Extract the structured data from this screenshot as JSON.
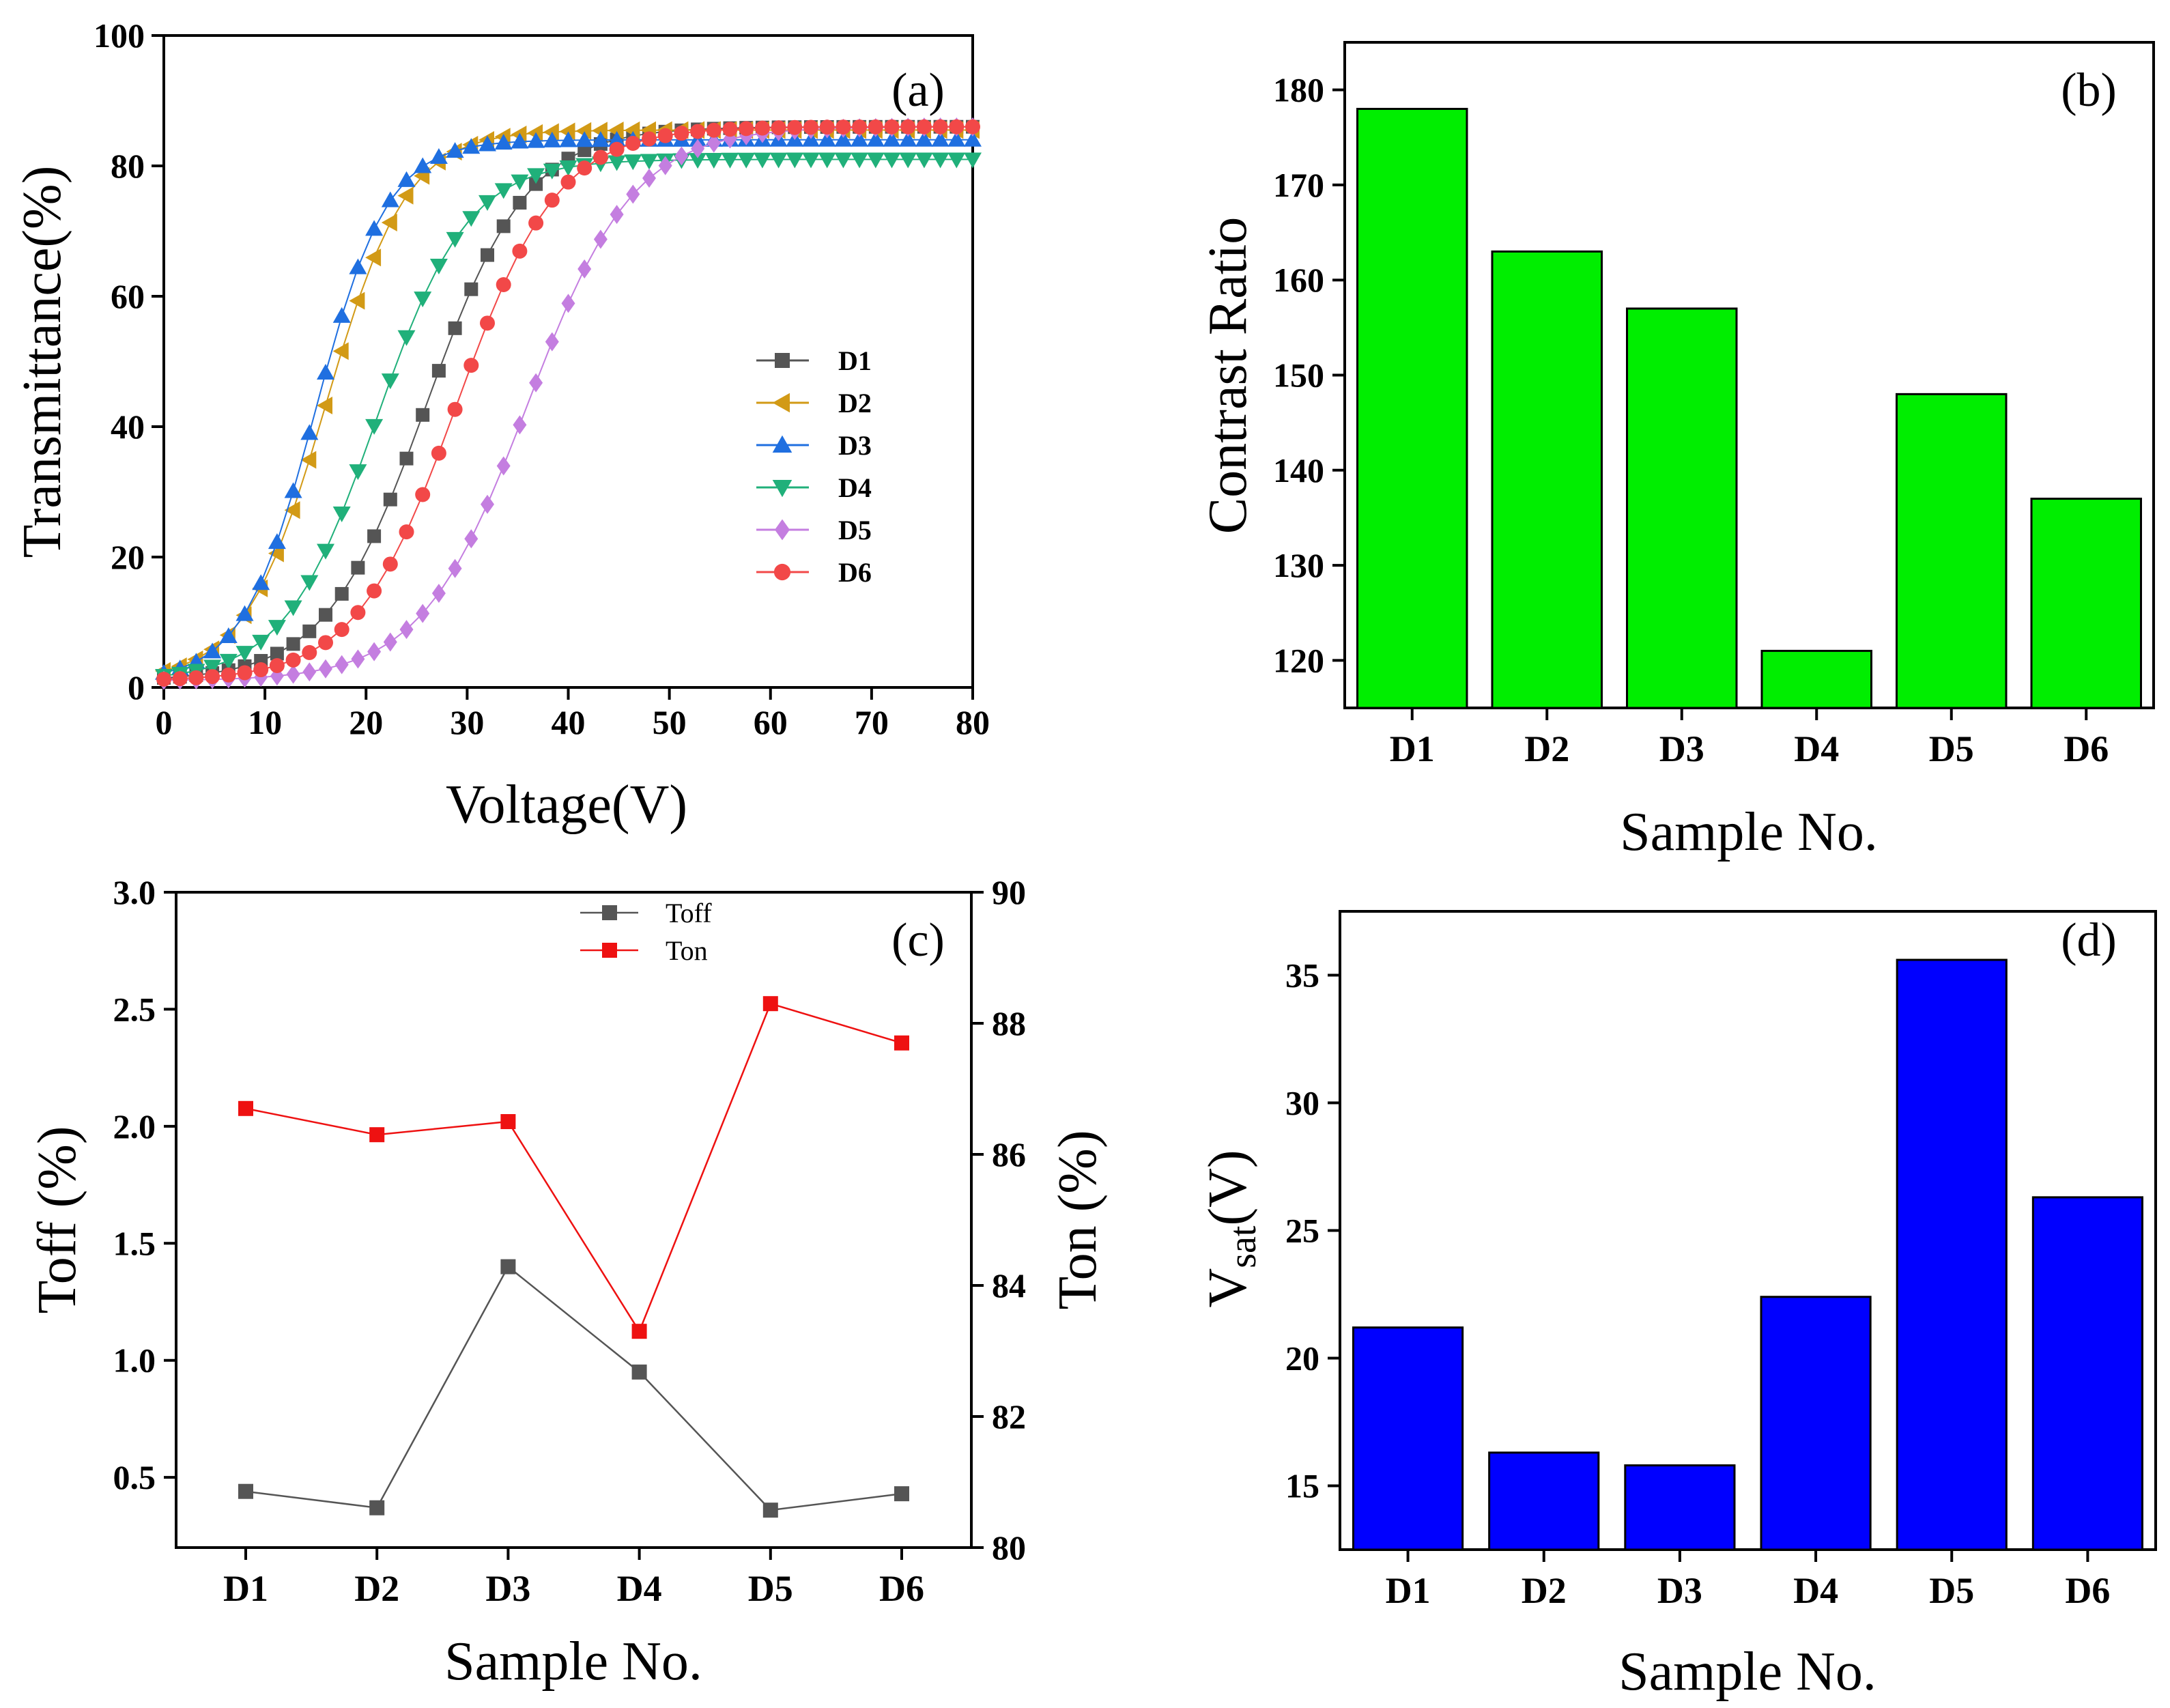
{
  "chart_data": [
    {
      "panel": "(a)",
      "type": "scatter",
      "xlabel": "Voltage(V)",
      "ylabel": "Transmittance(%)",
      "xlim": [
        0,
        80
      ],
      "ylim": [
        0,
        100
      ],
      "xticks": [
        0,
        10,
        20,
        30,
        40,
        50,
        60,
        70,
        80
      ],
      "yticks": [
        0,
        20,
        40,
        60,
        80,
        100
      ],
      "series": [
        {
          "name": "D1",
          "color": "#555555",
          "marker": "square",
          "V50": 26,
          "k": 0.2,
          "Tmax": 86
        },
        {
          "name": "D2",
          "color": "#d29a16",
          "marker": "triangle-left",
          "V50": 16,
          "k": 0.25,
          "Tmax": 85.5
        },
        {
          "name": "D3",
          "color": "#1f6fe0",
          "marker": "triangle-up",
          "V50": 15,
          "k": 0.28,
          "Tmax": 84
        },
        {
          "name": "D4",
          "color": "#20b07a",
          "marker": "triangle-down",
          "V50": 21,
          "k": 0.22,
          "Tmax": 81
        },
        {
          "name": "D5",
          "color": "#c47ee0",
          "marker": "diamond",
          "V50": 36,
          "k": 0.19,
          "Tmax": 86
        },
        {
          "name": "D6",
          "color": "#f24848",
          "marker": "circle",
          "V50": 29,
          "k": 0.2,
          "Tmax": 86
        }
      ]
    },
    {
      "panel": "(b)",
      "type": "bar",
      "xlabel": "Sample No.",
      "ylabel": "Contrast Ratio",
      "categories": [
        "D1",
        "D2",
        "D3",
        "D4",
        "D5",
        "D6"
      ],
      "values": [
        178,
        163,
        157,
        121,
        148,
        137
      ],
      "ylim": [
        115,
        185
      ],
      "yticks": [
        120,
        130,
        140,
        150,
        160,
        170,
        180
      ],
      "color": "#00ee00"
    },
    {
      "panel": "(c)",
      "type": "line",
      "xlabel": "Sample No.",
      "ylabel_left": "Toff (%)",
      "ylabel_right": "Ton (%)",
      "categories": [
        "D1",
        "D2",
        "D3",
        "D4",
        "D5",
        "D6"
      ],
      "series": [
        {
          "name": "Toff",
          "axis": "left",
          "color": "#555555",
          "values": [
            0.44,
            0.37,
            1.4,
            0.95,
            0.36,
            0.43
          ]
        },
        {
          "name": "Ton",
          "axis": "right",
          "color": "#ee1111",
          "values": [
            86.7,
            86.3,
            86.5,
            83.3,
            88.3,
            87.7
          ]
        }
      ],
      "ylim_left": [
        0.2,
        3.0
      ],
      "yticks_left": [
        "0.5",
        "1.0",
        "1.5",
        "2.0",
        "2.5",
        "3.0"
      ],
      "ylim_right": [
        80,
        90
      ],
      "yticks_right": [
        "80",
        "82",
        "84",
        "86",
        "88",
        "90"
      ]
    },
    {
      "panel": "(d)",
      "type": "bar",
      "xlabel": "Sample No.",
      "ylabel": "V",
      "ylabel_sub": "sat",
      "ylabel_suffix": "(V)",
      "categories": [
        "D1",
        "D2",
        "D3",
        "D4",
        "D5",
        "D6"
      ],
      "values": [
        21.2,
        16.3,
        15.8,
        22.4,
        35.6,
        26.3
      ],
      "ylim": [
        12.5,
        37.5
      ],
      "yticks": [
        15,
        20,
        25,
        30,
        35
      ],
      "color": "#0000ff"
    }
  ]
}
